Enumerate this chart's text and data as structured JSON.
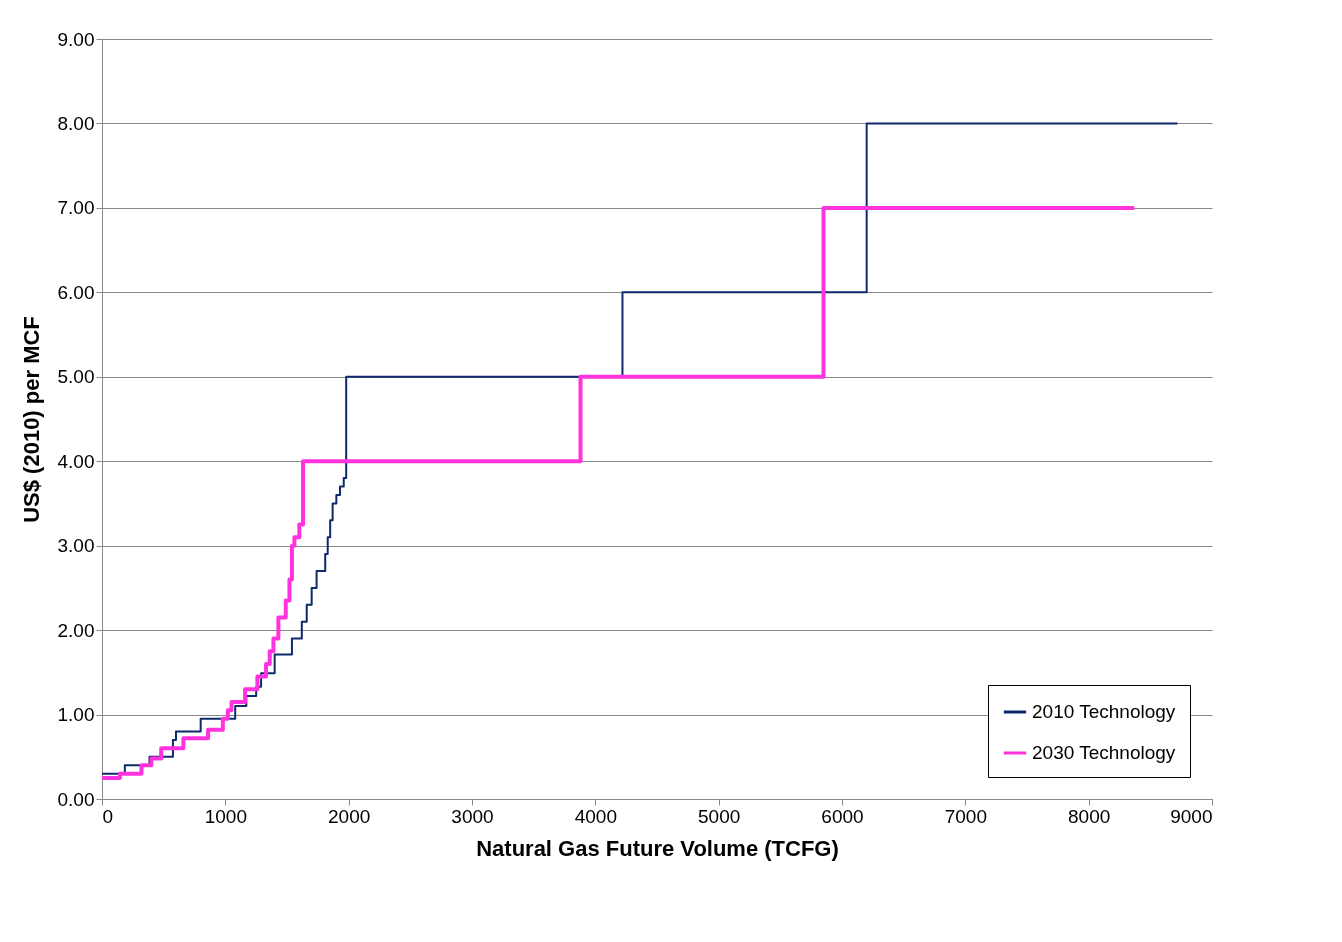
{
  "chart_data": {
    "type": "step",
    "xlabel": "Natural Gas Future Volume (TCFG)",
    "ylabel": "US$ (2010) per MCF",
    "series": [
      {
        "name": "2010 Technology",
        "color": "#0d2a6b",
        "x": [
          0,
          185,
          385,
          575,
          600,
          800,
          1080,
          1170,
          1250,
          1290,
          1400,
          1540,
          1620,
          1660,
          1700,
          1740,
          1810,
          1830,
          1850,
          1870,
          1900,
          1930,
          1960,
          1980,
          4220,
          6200,
          8720
        ],
        "values": [
          0.3,
          0.4,
          0.5,
          0.7,
          0.8,
          0.95,
          1.1,
          1.22,
          1.33,
          1.49,
          1.71,
          1.9,
          2.1,
          2.3,
          2.5,
          2.7,
          2.9,
          3.1,
          3.3,
          3.5,
          3.6,
          3.7,
          3.8,
          5.0,
          6.0,
          8.0,
          8.0
        ]
      },
      {
        "name": "2030 Technology",
        "color": "#ff33dd",
        "x": [
          0,
          145,
          320,
          400,
          480,
          660,
          860,
          980,
          1020,
          1050,
          1160,
          1260,
          1330,
          1360,
          1390,
          1430,
          1490,
          1520,
          1540,
          1560,
          1600,
          1630,
          3880,
          5850,
          8370
        ],
        "values": [
          0.25,
          0.3,
          0.4,
          0.48,
          0.6,
          0.72,
          0.82,
          0.95,
          1.05,
          1.15,
          1.3,
          1.45,
          1.6,
          1.75,
          1.9,
          2.15,
          2.35,
          2.6,
          3.0,
          3.1,
          3.25,
          4.0,
          5.0,
          7.0,
          7.0
        ]
      }
    ],
    "xlim": [
      0,
      9000
    ],
    "xticks": [
      0,
      1000,
      2000,
      3000,
      4000,
      5000,
      6000,
      7000,
      8000,
      9000
    ],
    "ylim": [
      0,
      9
    ],
    "yticks": [
      {
        "value": 0,
        "label": "0.00"
      },
      {
        "value": 1,
        "label": "1.00"
      },
      {
        "value": 2,
        "label": "2.00"
      },
      {
        "value": 3,
        "label": "3.00"
      },
      {
        "value": 4,
        "label": "4.00"
      },
      {
        "value": 5,
        "label": "5.00"
      },
      {
        "value": 6,
        "label": "6.00"
      },
      {
        "value": 7,
        "label": "7.00"
      },
      {
        "value": 8,
        "label": "8.00"
      },
      {
        "value": 9,
        "label": "9.00"
      }
    ],
    "grid": "y",
    "legend": "bottom right",
    "line_style": "solid",
    "marker": "none"
  }
}
